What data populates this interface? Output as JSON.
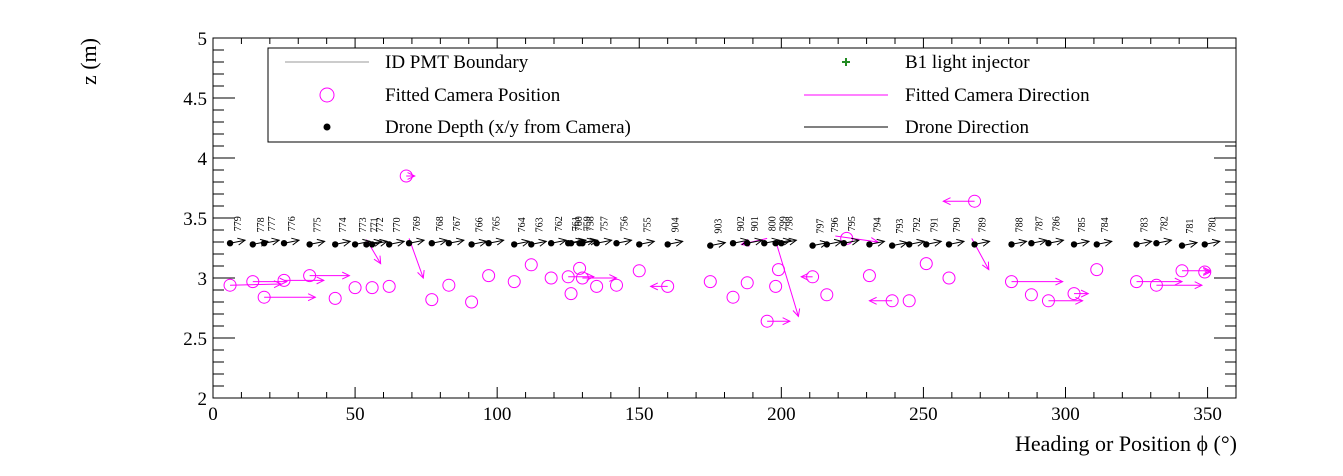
{
  "chart_data": {
    "type": "scatter",
    "xlabel": "Heading or Position ϕ (°)",
    "ylabel": "z (m)",
    "xlim": [
      0,
      360
    ],
    "ylim": [
      2,
      5
    ],
    "x_ticks": [
      0,
      50,
      100,
      150,
      200,
      250,
      300,
      350
    ],
    "y_ticks": [
      2,
      2.5,
      3,
      3.5,
      4,
      4.5,
      5
    ],
    "grid": false,
    "legend_placement": "top",
    "colors": {
      "boundary": "#bbbbbb",
      "injector": "#228b22",
      "camera": "#ff00ff",
      "drone": "#000000"
    },
    "legend": [
      {
        "key": "boundary",
        "label": "ID PMT Boundary"
      },
      {
        "key": "injector",
        "label": "B1 light injector"
      },
      {
        "key": "camera_pos",
        "label": "Fitted Camera Position"
      },
      {
        "key": "camera_dir",
        "label": "Fitted Camera Direction"
      },
      {
        "key": "drone_depth",
        "label": "Drone Depth (x/y from Camera)"
      },
      {
        "key": "drone_dir",
        "label": "Drone Direction"
      }
    ],
    "drone_points": [
      {
        "label": "779",
        "x": 6,
        "z": 3.29
      },
      {
        "label": "778",
        "x": 14,
        "z": 3.28
      },
      {
        "label": "777",
        "x": 18,
        "z": 3.29
      },
      {
        "label": "776",
        "x": 25,
        "z": 3.29
      },
      {
        "label": "775",
        "x": 34,
        "z": 3.28
      },
      {
        "label": "774",
        "x": 43,
        "z": 3.28
      },
      {
        "label": "773",
        "x": 50,
        "z": 3.28
      },
      {
        "label": "771",
        "x": 54,
        "z": 3.28
      },
      {
        "label": "772",
        "x": 56,
        "z": 3.28
      },
      {
        "label": "770",
        "x": 62,
        "z": 3.28
      },
      {
        "label": "769",
        "x": 69,
        "z": 3.29
      },
      {
        "label": "768",
        "x": 77,
        "z": 3.29
      },
      {
        "label": "767",
        "x": 83,
        "z": 3.29
      },
      {
        "label": "766",
        "x": 91,
        "z": 3.28
      },
      {
        "label": "765",
        "x": 97,
        "z": 3.29
      },
      {
        "label": "764",
        "x": 106,
        "z": 3.28
      },
      {
        "label": "763",
        "x": 112,
        "z": 3.28
      },
      {
        "label": "762",
        "x": 119,
        "z": 3.29
      },
      {
        "label": "761",
        "x": 125,
        "z": 3.29
      },
      {
        "label": "760",
        "x": 126,
        "z": 3.29
      },
      {
        "label": "759",
        "x": 129,
        "z": 3.29
      },
      {
        "label": "758",
        "x": 130,
        "z": 3.29
      },
      {
        "label": "757",
        "x": 135,
        "z": 3.29
      },
      {
        "label": "756",
        "x": 142,
        "z": 3.29
      },
      {
        "label": "755",
        "x": 150,
        "z": 3.28
      },
      {
        "label": "904",
        "x": 160,
        "z": 3.28
      },
      {
        "label": "903",
        "x": 175,
        "z": 3.27
      },
      {
        "label": "902",
        "x": 183,
        "z": 3.29
      },
      {
        "label": "901",
        "x": 188,
        "z": 3.29
      },
      {
        "label": "800",
        "x": 194,
        "z": 3.29
      },
      {
        "label": "799",
        "x": 198,
        "z": 3.29
      },
      {
        "label": "798",
        "x": 200,
        "z": 3.29
      },
      {
        "label": "797",
        "x": 211,
        "z": 3.27
      },
      {
        "label": "796",
        "x": 216,
        "z": 3.28
      },
      {
        "label": "795",
        "x": 222,
        "z": 3.29
      },
      {
        "label": "794",
        "x": 231,
        "z": 3.28
      },
      {
        "label": "793",
        "x": 239,
        "z": 3.27
      },
      {
        "label": "792",
        "x": 245,
        "z": 3.28
      },
      {
        "label": "791",
        "x": 251,
        "z": 3.28
      },
      {
        "label": "790",
        "x": 259,
        "z": 3.28
      },
      {
        "label": "789",
        "x": 268,
        "z": 3.28
      },
      {
        "label": "788",
        "x": 281,
        "z": 3.28
      },
      {
        "label": "787",
        "x": 288,
        "z": 3.29
      },
      {
        "label": "786",
        "x": 294,
        "z": 3.29
      },
      {
        "label": "785",
        "x": 303,
        "z": 3.28
      },
      {
        "label": "784",
        "x": 311,
        "z": 3.28
      },
      {
        "label": "783",
        "x": 325,
        "z": 3.28
      },
      {
        "label": "782",
        "x": 332,
        "z": 3.29
      },
      {
        "label": "781",
        "x": 341,
        "z": 3.27
      },
      {
        "label": "780",
        "x": 349,
        "z": 3.28
      }
    ],
    "camera_points": [
      {
        "x": 6,
        "z": 2.94,
        "dx": 18,
        "dz": 0.01
      },
      {
        "x": 14,
        "z": 2.97,
        "dx": 12,
        "dz": 0.0
      },
      {
        "x": 18,
        "z": 2.84,
        "dx": 18,
        "dz": 0.0
      },
      {
        "x": 25,
        "z": 2.98,
        "dx": 14,
        "dz": 0.0
      },
      {
        "x": 34,
        "z": 3.02,
        "dx": 14,
        "dz": 0.0
      },
      {
        "x": 43,
        "z": 2.83,
        "dx": 0,
        "dz": 0.0
      },
      {
        "x": 50,
        "z": 2.92,
        "dx": 0,
        "dz": 0.0
      },
      {
        "x": 56,
        "z": 2.92,
        "dx": 0,
        "dz": 0.0
      },
      {
        "x": 62,
        "z": 2.93,
        "dx": 0,
        "dz": 0.0
      },
      {
        "x": 68,
        "z": 3.85,
        "dx": 3,
        "dz": 0.0
      },
      {
        "x": 77,
        "z": 2.82,
        "dx": 0,
        "dz": 0.0
      },
      {
        "x": 83,
        "z": 2.94,
        "dx": 0,
        "dz": 0.0
      },
      {
        "x": 91,
        "z": 2.8,
        "dx": 0,
        "dz": 0.0
      },
      {
        "x": 97,
        "z": 3.02,
        "dx": 0,
        "dz": 0.0
      },
      {
        "x": 106,
        "z": 2.97,
        "dx": 0,
        "dz": 0.0
      },
      {
        "x": 112,
        "z": 3.11,
        "dx": 0,
        "dz": 0.0
      },
      {
        "x": 119,
        "z": 3.0,
        "dx": 0,
        "dz": 0.0
      },
      {
        "x": 125,
        "z": 3.01,
        "dx": 9,
        "dz": 0.0
      },
      {
        "x": 126,
        "z": 2.87,
        "dx": 0,
        "dz": 0.0
      },
      {
        "x": 129,
        "z": 3.08,
        "dx": 0,
        "dz": 0.0
      },
      {
        "x": 130,
        "z": 3.0,
        "dx": 12,
        "dz": 0.0
      },
      {
        "x": 135,
        "z": 2.93,
        "dx": 0,
        "dz": 0.0
      },
      {
        "x": 142,
        "z": 2.94,
        "dx": 0,
        "dz": 0.0
      },
      {
        "x": 150,
        "z": 3.06,
        "dx": 0,
        "dz": 0.0
      },
      {
        "x": 160,
        "z": 2.93,
        "dx": -6,
        "dz": 0.0
      },
      {
        "x": 175,
        "z": 2.97,
        "dx": 0,
        "dz": 0.0
      },
      {
        "x": 183,
        "z": 2.84,
        "dx": 0,
        "dz": 0.0
      },
      {
        "x": 188,
        "z": 2.96,
        "dx": 0,
        "dz": 0.0
      },
      {
        "x": 195,
        "z": 2.64,
        "dx": 8,
        "dz": 0.0
      },
      {
        "x": 198,
        "z": 2.93,
        "dx": 0,
        "dz": 0.0
      },
      {
        "x": 199,
        "z": 3.07,
        "dx": 0,
        "dz": 0.0
      },
      {
        "x": 211,
        "z": 3.01,
        "dx": -4,
        "dz": 0.0
      },
      {
        "x": 216,
        "z": 2.86,
        "dx": 0,
        "dz": 0.0
      },
      {
        "x": 223,
        "z": 3.33,
        "dx": 0,
        "dz": 0.0
      },
      {
        "x": 231,
        "z": 3.02,
        "dx": 0,
        "dz": 0.0
      },
      {
        "x": 239,
        "z": 2.81,
        "dx": -8,
        "dz": 0.0
      },
      {
        "x": 245,
        "z": 2.81,
        "dx": 0,
        "dz": 0.0
      },
      {
        "x": 251,
        "z": 3.12,
        "dx": 0,
        "dz": 0.0
      },
      {
        "x": 259,
        "z": 3.0,
        "dx": 0,
        "dz": 0.0
      },
      {
        "x": 268,
        "z": 3.64,
        "dx": -11,
        "dz": 0.0
      },
      {
        "x": 281,
        "z": 2.97,
        "dx": 18,
        "dz": 0.0
      },
      {
        "x": 288,
        "z": 2.86,
        "dx": 0,
        "dz": 0.0
      },
      {
        "x": 294,
        "z": 2.81,
        "dx": 12,
        "dz": 0.0
      },
      {
        "x": 303,
        "z": 2.87,
        "dx": 5,
        "dz": 0.0
      },
      {
        "x": 311,
        "z": 3.07,
        "dx": 0,
        "dz": 0.0
      },
      {
        "x": 325,
        "z": 2.97,
        "dx": 16,
        "dz": 0.0
      },
      {
        "x": 332,
        "z": 2.94,
        "dx": 16,
        "dz": 0.0
      },
      {
        "x": 341,
        "z": 3.06,
        "dx": 10,
        "dz": 0.0
      },
      {
        "x": 349,
        "z": 3.05,
        "dx": 2,
        "dz": 0.0
      }
    ],
    "camera_slanted": [
      {
        "x": 54,
        "z": 3.32,
        "dx": 5,
        "dz": -0.2
      },
      {
        "x": 69,
        "z": 3.33,
        "dx": 5,
        "dz": -0.33
      },
      {
        "x": 198,
        "z": 3.31,
        "dx": 8,
        "dz": -0.63
      },
      {
        "x": 195,
        "z": 3.33,
        "dx": -9,
        "dz": -0.05
      },
      {
        "x": 267,
        "z": 3.33,
        "dx": 6,
        "dz": -0.26
      },
      {
        "x": 219,
        "z": 3.35,
        "dx": 15,
        "dz": -0.05
      }
    ]
  }
}
